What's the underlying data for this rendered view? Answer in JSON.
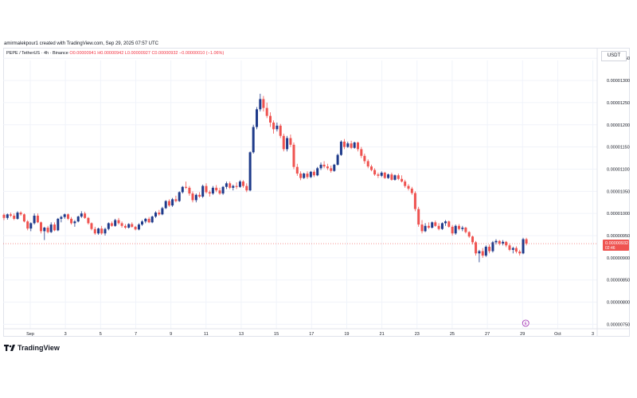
{
  "header": {
    "created_by": "amirmalekpour1 created with TradingView.com, Sep 29, 2025 07:57 UTC"
  },
  "legend": {
    "symbol": "PEPE / TetherUS · 4h · Binance",
    "ohlc": "O0.00000941 H0.00000942 L0.00000927 C0.00000932 −0.00000010 (−1.06%)"
  },
  "currency": "USDT",
  "footer": {
    "brand": "TradingView"
  },
  "colors": {
    "up": "#1e3a8a",
    "down": "#ef5350",
    "grid": "#f0f3fa",
    "price_tag": "#ef5350"
  },
  "chart_data": {
    "type": "candlestick",
    "title": "PEPE / TetherUS · 4h · Binance",
    "ylim": [
      7.4e-06,
      1.345e-05
    ],
    "y_ticks": [
      "0.00001350",
      "0.00001300",
      "0.00001250",
      "0.00001200",
      "0.00001150",
      "0.00001100",
      "0.00001050",
      "0.00001000",
      "0.00000950",
      "0.00000900",
      "0.00000850",
      "0.00000800",
      "0.00000750"
    ],
    "x_ticks": [
      {
        "label": "Sep",
        "day": 1
      },
      {
        "label": "3",
        "day": 3
      },
      {
        "label": "5",
        "day": 5
      },
      {
        "label": "7",
        "day": 7
      },
      {
        "label": "9",
        "day": 9
      },
      {
        "label": "11",
        "day": 11
      },
      {
        "label": "13",
        "day": 13
      },
      {
        "label": "15",
        "day": 15
      },
      {
        "label": "17",
        "day": 17
      },
      {
        "label": "19",
        "day": 19
      },
      {
        "label": "21",
        "day": 21
      },
      {
        "label": "23",
        "day": 23
      },
      {
        "label": "25",
        "day": 25
      },
      {
        "label": "27",
        "day": 27
      },
      {
        "label": "29",
        "day": 29
      },
      {
        "label": "Oct",
        "day": 31
      },
      {
        "label": "3",
        "day": 33
      }
    ],
    "last_price": "0.00000932",
    "countdown": "02:46",
    "event_marker": "E",
    "candle_keys": [
      "day",
      "open",
      "high",
      "low",
      "close"
    ],
    "candles": [
      [
        0.0,
        9.97,
        10.0,
        9.85,
        9.9
      ],
      [
        0.17,
        9.9,
        10.0,
        9.86,
        9.98
      ],
      [
        0.33,
        9.98,
        10.02,
        9.92,
        9.95
      ],
      [
        0.5,
        9.95,
        10.0,
        9.85,
        9.88
      ],
      [
        0.67,
        9.88,
        10.05,
        9.86,
        10.02
      ],
      [
        0.83,
        10.02,
        10.05,
        9.95,
        9.98
      ],
      [
        1.0,
        9.98,
        10.0,
        9.8,
        9.82
      ],
      [
        1.17,
        9.82,
        9.85,
        9.62,
        9.66
      ],
      [
        1.33,
        9.66,
        9.8,
        9.6,
        9.78
      ],
      [
        1.5,
        9.78,
        10.0,
        9.75,
        9.95
      ],
      [
        1.67,
        9.95,
        10.0,
        9.78,
        9.8
      ],
      [
        1.83,
        9.8,
        9.82,
        9.55,
        9.6
      ],
      [
        2.0,
        9.6,
        9.7,
        9.4,
        9.68
      ],
      [
        2.17,
        9.68,
        9.72,
        9.55,
        9.58
      ],
      [
        2.33,
        9.58,
        9.8,
        9.56,
        9.75
      ],
      [
        2.5,
        9.75,
        9.8,
        9.6,
        9.62
      ],
      [
        2.67,
        9.62,
        9.9,
        9.6,
        9.88
      ],
      [
        2.83,
        9.88,
        9.95,
        9.8,
        9.92
      ],
      [
        3.0,
        9.92,
        10.0,
        9.88,
        9.98
      ],
      [
        3.17,
        9.98,
        10.0,
        9.85,
        9.88
      ],
      [
        3.33,
        9.88,
        9.92,
        9.75,
        9.78
      ],
      [
        3.5,
        9.78,
        9.85,
        9.7,
        9.82
      ],
      [
        3.67,
        9.82,
        9.95,
        9.8,
        9.93
      ],
      [
        3.83,
        9.93,
        10.05,
        9.9,
        10.0
      ],
      [
        4.0,
        10.0,
        10.04,
        9.88,
        9.9
      ],
      [
        4.17,
        9.9,
        9.92,
        9.75,
        9.78
      ],
      [
        4.33,
        9.78,
        9.8,
        9.62,
        9.65
      ],
      [
        4.5,
        9.65,
        9.7,
        9.52,
        9.55
      ],
      [
        4.67,
        9.55,
        9.68,
        9.52,
        9.66
      ],
      [
        4.83,
        9.66,
        9.72,
        9.52,
        9.55
      ],
      [
        5.0,
        9.55,
        9.68,
        9.5,
        9.65
      ],
      [
        5.17,
        9.65,
        9.8,
        9.62,
        9.78
      ],
      [
        5.33,
        9.78,
        9.82,
        9.7,
        9.72
      ],
      [
        5.5,
        9.72,
        9.88,
        9.7,
        9.85
      ],
      [
        5.67,
        9.85,
        9.9,
        9.75,
        9.78
      ],
      [
        5.83,
        9.78,
        9.82,
        9.68,
        9.72
      ],
      [
        6.0,
        9.72,
        9.76,
        9.65,
        9.68
      ],
      [
        6.17,
        9.68,
        9.78,
        9.66,
        9.76
      ],
      [
        6.33,
        9.76,
        9.8,
        9.68,
        9.7
      ],
      [
        6.5,
        9.7,
        9.72,
        9.62,
        9.64
      ],
      [
        6.67,
        9.64,
        9.78,
        9.62,
        9.75
      ],
      [
        6.83,
        9.75,
        9.85,
        9.72,
        9.82
      ],
      [
        7.0,
        9.82,
        9.9,
        9.78,
        9.88
      ],
      [
        7.17,
        9.88,
        9.92,
        9.78,
        9.8
      ],
      [
        7.33,
        9.8,
        9.95,
        9.78,
        9.93
      ],
      [
        7.5,
        9.93,
        10.05,
        9.9,
        10.02
      ],
      [
        7.67,
        10.02,
        10.08,
        9.95,
        9.98
      ],
      [
        7.83,
        9.98,
        10.15,
        9.96,
        10.12
      ],
      [
        8.0,
        10.12,
        10.3,
        10.1,
        10.28
      ],
      [
        8.17,
        10.28,
        10.32,
        10.15,
        10.18
      ],
      [
        8.33,
        10.18,
        10.35,
        10.15,
        10.32
      ],
      [
        8.5,
        10.32,
        10.4,
        10.25,
        10.28
      ],
      [
        8.67,
        10.28,
        10.5,
        10.26,
        10.48
      ],
      [
        8.83,
        10.48,
        10.62,
        10.45,
        10.6
      ],
      [
        9.0,
        10.6,
        10.72,
        10.55,
        10.58
      ],
      [
        9.17,
        10.58,
        10.62,
        10.4,
        10.45
      ],
      [
        9.33,
        10.45,
        10.5,
        10.25,
        10.3
      ],
      [
        9.5,
        10.3,
        10.45,
        10.25,
        10.42
      ],
      [
        9.67,
        10.42,
        10.48,
        10.35,
        10.38
      ],
      [
        9.83,
        10.38,
        10.65,
        10.35,
        10.62
      ],
      [
        10.0,
        10.62,
        10.68,
        10.45,
        10.48
      ],
      [
        10.17,
        10.48,
        10.52,
        10.38,
        10.45
      ],
      [
        10.33,
        10.45,
        10.62,
        10.42,
        10.58
      ],
      [
        10.5,
        10.58,
        10.64,
        10.48,
        10.52
      ],
      [
        10.67,
        10.52,
        10.58,
        10.42,
        10.45
      ],
      [
        10.83,
        10.45,
        10.62,
        10.42,
        10.6
      ],
      [
        11.0,
        10.6,
        10.72,
        10.55,
        10.68
      ],
      [
        11.17,
        10.68,
        10.72,
        10.55,
        10.58
      ],
      [
        11.33,
        10.58,
        10.65,
        10.52,
        10.62
      ],
      [
        11.5,
        10.62,
        10.7,
        10.55,
        10.6
      ],
      [
        11.67,
        10.6,
        10.75,
        10.58,
        10.72
      ],
      [
        11.83,
        10.72,
        10.75,
        10.58,
        10.62
      ],
      [
        12.0,
        10.62,
        10.68,
        10.48,
        10.52
      ],
      [
        12.17,
        10.52,
        11.4,
        10.5,
        11.38
      ],
      [
        12.33,
        11.38,
        12.0,
        11.35,
        11.95
      ],
      [
        12.5,
        11.95,
        12.4,
        11.9,
        12.35
      ],
      [
        12.67,
        12.35,
        12.7,
        12.3,
        12.58
      ],
      [
        12.83,
        12.58,
        12.65,
        12.3,
        12.38
      ],
      [
        13.0,
        12.38,
        12.5,
        12.15,
        12.2
      ],
      [
        13.17,
        12.2,
        12.28,
        11.95,
        12.05
      ],
      [
        13.33,
        12.05,
        12.1,
        11.8,
        11.9
      ],
      [
        13.5,
        11.9,
        12.05,
        11.85,
        11.98
      ],
      [
        13.67,
        11.98,
        12.02,
        11.7,
        11.75
      ],
      [
        13.83,
        11.75,
        11.8,
        11.4,
        11.45
      ],
      [
        14.0,
        11.45,
        11.75,
        11.4,
        11.7
      ],
      [
        14.17,
        11.7,
        11.78,
        11.5,
        11.55
      ],
      [
        14.33,
        11.55,
        11.6,
        11.0,
        11.05
      ],
      [
        14.5,
        11.05,
        11.12,
        10.85,
        10.9
      ],
      [
        14.67,
        10.9,
        10.95,
        10.75,
        10.8
      ],
      [
        14.83,
        10.8,
        10.92,
        10.78,
        10.9
      ],
      [
        15.0,
        10.9,
        10.95,
        10.78,
        10.82
      ],
      [
        15.17,
        10.82,
        10.96,
        10.8,
        10.94
      ],
      [
        15.33,
        10.94,
        10.98,
        10.82,
        10.86
      ],
      [
        15.5,
        10.86,
        11.05,
        10.84,
        11.02
      ],
      [
        15.67,
        11.02,
        11.15,
        10.98,
        11.1
      ],
      [
        15.83,
        11.1,
        11.18,
        11.02,
        11.06
      ],
      [
        16.0,
        11.06,
        11.12,
        10.98,
        11.02
      ],
      [
        16.17,
        11.02,
        11.08,
        10.92,
        10.96
      ],
      [
        16.33,
        10.96,
        11.12,
        10.94,
        11.1
      ],
      [
        16.5,
        11.1,
        11.35,
        11.08,
        11.32
      ],
      [
        16.67,
        11.32,
        11.65,
        11.3,
        11.62
      ],
      [
        16.83,
        11.62,
        11.68,
        11.45,
        11.5
      ],
      [
        17.0,
        11.5,
        11.62,
        11.48,
        11.58
      ],
      [
        17.17,
        11.58,
        11.64,
        11.45,
        11.48
      ],
      [
        17.33,
        11.48,
        11.62,
        11.46,
        11.6
      ],
      [
        17.5,
        11.6,
        11.62,
        11.4,
        11.45
      ],
      [
        17.67,
        11.45,
        11.5,
        11.25,
        11.3
      ],
      [
        17.83,
        11.3,
        11.35,
        11.12,
        11.18
      ],
      [
        18.0,
        11.18,
        11.22,
        11.02,
        11.06
      ],
      [
        18.17,
        11.06,
        11.1,
        10.95,
        10.98
      ],
      [
        18.33,
        10.98,
        11.02,
        10.85,
        10.88
      ],
      [
        18.5,
        10.88,
        10.92,
        10.8,
        10.85
      ],
      [
        18.67,
        10.85,
        10.95,
        10.82,
        10.92
      ],
      [
        18.83,
        10.92,
        10.94,
        10.78,
        10.8
      ],
      [
        19.0,
        10.8,
        10.9,
        10.78,
        10.88
      ],
      [
        19.17,
        10.88,
        10.92,
        10.74,
        10.76
      ],
      [
        19.33,
        10.76,
        10.88,
        10.74,
        10.86
      ],
      [
        19.5,
        10.86,
        10.9,
        10.75,
        10.78
      ],
      [
        19.67,
        10.78,
        10.86,
        10.7,
        10.72
      ],
      [
        19.83,
        10.72,
        10.76,
        10.58,
        10.62
      ],
      [
        20.0,
        10.62,
        10.66,
        10.52,
        10.56
      ],
      [
        20.17,
        10.56,
        10.6,
        10.42,
        10.46
      ],
      [
        20.33,
        10.46,
        10.5,
        10.05,
        10.1
      ],
      [
        20.5,
        10.1,
        10.15,
        9.7,
        9.75
      ],
      [
        20.67,
        9.75,
        9.85,
        9.55,
        9.6
      ],
      [
        20.83,
        9.6,
        9.78,
        9.58,
        9.72
      ],
      [
        21.0,
        9.72,
        9.8,
        9.65,
        9.68
      ],
      [
        21.17,
        9.68,
        9.82,
        9.66,
        9.8
      ],
      [
        21.33,
        9.8,
        9.84,
        9.7,
        9.72
      ],
      [
        21.5,
        9.72,
        9.78,
        9.62,
        9.65
      ],
      [
        21.67,
        9.65,
        9.8,
        9.63,
        9.78
      ],
      [
        21.83,
        9.78,
        9.85,
        9.72,
        9.82
      ],
      [
        22.0,
        9.82,
        9.84,
        9.68,
        9.7
      ],
      [
        22.17,
        9.7,
        9.74,
        9.5,
        9.55
      ],
      [
        22.33,
        9.55,
        9.75,
        9.52,
        9.72
      ],
      [
        22.5,
        9.72,
        9.76,
        9.62,
        9.65
      ],
      [
        22.67,
        9.65,
        9.72,
        9.6,
        9.68
      ],
      [
        22.83,
        9.68,
        9.7,
        9.55,
        9.58
      ],
      [
        23.0,
        9.58,
        9.6,
        9.45,
        9.48
      ],
      [
        23.17,
        9.48,
        9.5,
        9.3,
        9.35
      ],
      [
        23.33,
        9.35,
        9.38,
        9.05,
        9.1
      ],
      [
        23.5,
        9.1,
        9.18,
        8.9,
        9.15
      ],
      [
        23.67,
        9.15,
        9.22,
        9.0,
        9.05
      ],
      [
        23.83,
        9.05,
        9.28,
        9.02,
        9.25
      ],
      [
        24.0,
        9.25,
        9.3,
        9.1,
        9.15
      ],
      [
        24.17,
        9.15,
        9.38,
        9.12,
        9.35
      ],
      [
        24.33,
        9.35,
        9.42,
        9.3,
        9.38
      ],
      [
        24.5,
        9.38,
        9.4,
        9.28,
        9.32
      ],
      [
        24.67,
        9.32,
        9.4,
        9.28,
        9.36
      ],
      [
        24.83,
        9.36,
        9.38,
        9.24,
        9.28
      ],
      [
        25.0,
        9.28,
        9.32,
        9.15,
        9.18
      ],
      [
        25.17,
        9.18,
        9.25,
        9.1,
        9.22
      ],
      [
        25.33,
        9.22,
        9.26,
        9.1,
        9.14
      ],
      [
        25.5,
        9.14,
        9.18,
        9.05,
        9.1
      ],
      [
        25.67,
        9.1,
        9.45,
        9.08,
        9.42
      ],
      [
        25.83,
        9.42,
        9.45,
        9.28,
        9.32
      ]
    ]
  }
}
